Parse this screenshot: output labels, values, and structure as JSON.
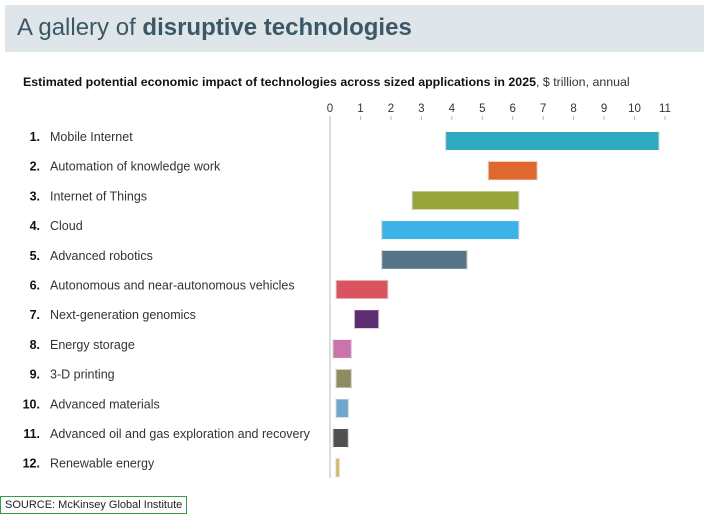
{
  "banner": {
    "title_prefix": "A gallery of ",
    "title_bold": "disruptive technologies"
  },
  "chart_data": {
    "type": "bar",
    "orientation": "horizontal-range",
    "subtitle_bold": "Estimated potential economic impact of technologies across sized applications in 2025",
    "subtitle_unit": ", $ trillion, annual",
    "xlim": [
      0,
      11
    ],
    "xticks": [
      0,
      1,
      2,
      3,
      4,
      5,
      6,
      7,
      8,
      9,
      10,
      11
    ],
    "x_axis_position": "top",
    "grid": false,
    "categories": [
      {
        "rank": "1.",
        "label": "Mobile Internet",
        "low": 3.8,
        "high": 10.8,
        "color": "#2fa9be"
      },
      {
        "rank": "2.",
        "label": "Automation of knowledge work",
        "low": 5.2,
        "high": 6.8,
        "color": "#e0682e"
      },
      {
        "rank": "3.",
        "label": "Internet of Things",
        "low": 2.7,
        "high": 6.2,
        "color": "#98a53a"
      },
      {
        "rank": "4.",
        "label": "Cloud",
        "low": 1.7,
        "high": 6.2,
        "color": "#3cb3e6"
      },
      {
        "rank": "5.",
        "label": "Advanced robotics",
        "low": 1.7,
        "high": 4.5,
        "color": "#557485"
      },
      {
        "rank": "6.",
        "label": "Autonomous and near-autonomous vehicles",
        "low": 0.2,
        "high": 1.9,
        "color": "#da5460"
      },
      {
        "rank": "7.",
        "label": "Next-generation genomics",
        "low": 0.8,
        "high": 1.6,
        "color": "#5e2e72"
      },
      {
        "rank": "8.",
        "label": "Energy storage",
        "low": 0.1,
        "high": 0.7,
        "color": "#cd73ab"
      },
      {
        "rank": "9.",
        "label": "3-D printing",
        "low": 0.2,
        "high": 0.7,
        "color": "#8c8c60"
      },
      {
        "rank": "10.",
        "label": "Advanced materials",
        "low": 0.2,
        "high": 0.6,
        "color": "#6fa6cb"
      },
      {
        "rank": "11.",
        "label": "Advanced oil and gas exploration and recovery",
        "low": 0.1,
        "high": 0.6,
        "color": "#505050"
      },
      {
        "rank": "12.",
        "label": "Renewable energy",
        "low": 0.2,
        "high": 0.3,
        "color": "#d6b54a"
      }
    ]
  },
  "source": "SOURCE: McKinsey Global Institute"
}
